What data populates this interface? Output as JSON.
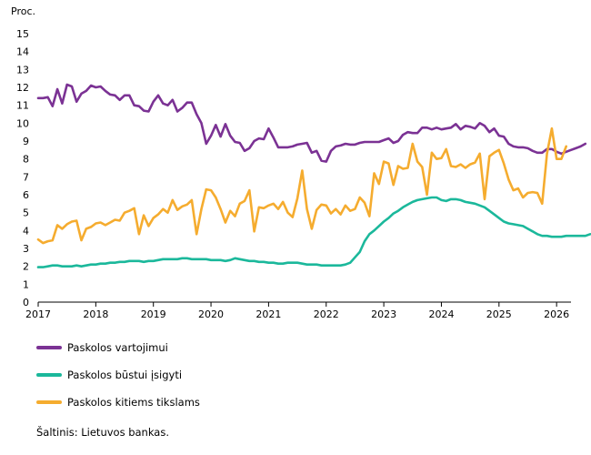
{
  "chart_data": {
    "type": "line",
    "ylabel": "Proc.",
    "ylim": [
      0,
      15
    ],
    "yticks": [
      0,
      1,
      2,
      3,
      4,
      5,
      6,
      7,
      8,
      9,
      10,
      11,
      12,
      13,
      14,
      15
    ],
    "xlim": [
      2017,
      2026.25
    ],
    "xticks": [
      "2017",
      "2018",
      "2019",
      "2020",
      "2021",
      "2022",
      "2023",
      "2024",
      "2025",
      "2026"
    ],
    "grid": false,
    "legend_position": "bottom-left",
    "x_start": 2017.0,
    "x_step": 0.0833333,
    "series": [
      {
        "name": "Paskolos vartojimui",
        "color": "#7b3294",
        "values": [
          11.4,
          11.4,
          11.45,
          10.95,
          11.9,
          11.1,
          12.15,
          12.05,
          11.2,
          11.65,
          11.8,
          12.1,
          12.0,
          12.05,
          11.8,
          11.6,
          11.55,
          11.3,
          11.55,
          11.55,
          11.0,
          10.95,
          10.7,
          10.65,
          11.2,
          11.55,
          11.1,
          11.0,
          11.3,
          10.65,
          10.85,
          11.15,
          11.15,
          10.5,
          10.0,
          8.85,
          9.3,
          9.9,
          9.25,
          9.95,
          9.3,
          8.95,
          8.9,
          8.45,
          8.6,
          9.0,
          9.15,
          9.1,
          9.7,
          9.2,
          8.65,
          8.65,
          8.65,
          8.7,
          8.8,
          8.85,
          8.9,
          8.35,
          8.45,
          7.9,
          7.85,
          8.45,
          8.7,
          8.75,
          8.85,
          8.8,
          8.8,
          8.9,
          8.95,
          8.95,
          8.95,
          8.95,
          9.05,
          9.15,
          8.9,
          9.0,
          9.35,
          9.5,
          9.45,
          9.45,
          9.75,
          9.75,
          9.65,
          9.75,
          9.65,
          9.7,
          9.75,
          9.95,
          9.65,
          9.85,
          9.8,
          9.7,
          10.0,
          9.85,
          9.5,
          9.7,
          9.3,
          9.25,
          8.85,
          8.7,
          8.65,
          8.65,
          8.6,
          8.45,
          8.35,
          8.35,
          8.55,
          8.55,
          8.4,
          8.3,
          8.4,
          8.5,
          8.6,
          8.7,
          8.85
        ]
      },
      {
        "name": "Paskolos būstui įsigyti",
        "color": "#1bb89b",
        "values": [
          1.95,
          1.95,
          2.0,
          2.05,
          2.05,
          2.0,
          2.0,
          2.0,
          2.05,
          2.0,
          2.05,
          2.1,
          2.1,
          2.15,
          2.15,
          2.2,
          2.2,
          2.25,
          2.25,
          2.3,
          2.3,
          2.3,
          2.25,
          2.3,
          2.3,
          2.35,
          2.4,
          2.4,
          2.4,
          2.4,
          2.45,
          2.45,
          2.4,
          2.4,
          2.4,
          2.4,
          2.35,
          2.35,
          2.35,
          2.3,
          2.35,
          2.45,
          2.4,
          2.35,
          2.3,
          2.3,
          2.25,
          2.25,
          2.2,
          2.2,
          2.15,
          2.15,
          2.2,
          2.2,
          2.2,
          2.15,
          2.1,
          2.1,
          2.1,
          2.05,
          2.05,
          2.05,
          2.05,
          2.05,
          2.1,
          2.2,
          2.5,
          2.8,
          3.4,
          3.8,
          4.0,
          4.25,
          4.5,
          4.7,
          4.95,
          5.1,
          5.3,
          5.45,
          5.6,
          5.7,
          5.75,
          5.8,
          5.85,
          5.85,
          5.7,
          5.65,
          5.75,
          5.75,
          5.7,
          5.6,
          5.55,
          5.5,
          5.4,
          5.3,
          5.1,
          4.9,
          4.7,
          4.5,
          4.4,
          4.35,
          4.3,
          4.25,
          4.1,
          3.95,
          3.8,
          3.7,
          3.7,
          3.65,
          3.65,
          3.65,
          3.7,
          3.7,
          3.7,
          3.7,
          3.7,
          3.8
        ]
      },
      {
        "name": "Paskolos kitiems tikslams",
        "color": "#f5ac2f",
        "values": [
          3.5,
          3.3,
          3.4,
          3.45,
          4.3,
          4.1,
          4.35,
          4.5,
          4.55,
          3.45,
          4.1,
          4.2,
          4.4,
          4.45,
          4.3,
          4.45,
          4.6,
          4.55,
          5.0,
          5.1,
          5.25,
          3.8,
          4.85,
          4.25,
          4.7,
          4.9,
          5.2,
          5.0,
          5.7,
          5.15,
          5.35,
          5.45,
          5.7,
          3.8,
          5.2,
          6.3,
          6.25,
          5.85,
          5.2,
          4.45,
          5.1,
          4.8,
          5.5,
          5.65,
          6.25,
          3.95,
          5.3,
          5.25,
          5.4,
          5.5,
          5.2,
          5.6,
          5.0,
          4.75,
          5.8,
          7.35,
          5.2,
          4.1,
          5.15,
          5.45,
          5.4,
          4.95,
          5.2,
          4.9,
          5.4,
          5.1,
          5.2,
          5.85,
          5.55,
          4.8,
          7.2,
          6.6,
          7.85,
          7.75,
          6.55,
          7.6,
          7.45,
          7.5,
          8.85,
          7.85,
          7.55,
          6.0,
          8.35,
          8.0,
          8.05,
          8.55,
          7.6,
          7.55,
          7.7,
          7.5,
          7.7,
          7.8,
          8.3,
          5.75,
          8.15,
          8.35,
          8.5,
          7.75,
          6.85,
          6.25,
          6.35,
          5.85,
          6.1,
          6.15,
          6.1,
          5.5,
          8.3,
          9.7,
          8.0,
          8.0,
          8.7
        ]
      }
    ]
  },
  "footer": {
    "source": "Šaltinis: Lietuvos bankas."
  }
}
